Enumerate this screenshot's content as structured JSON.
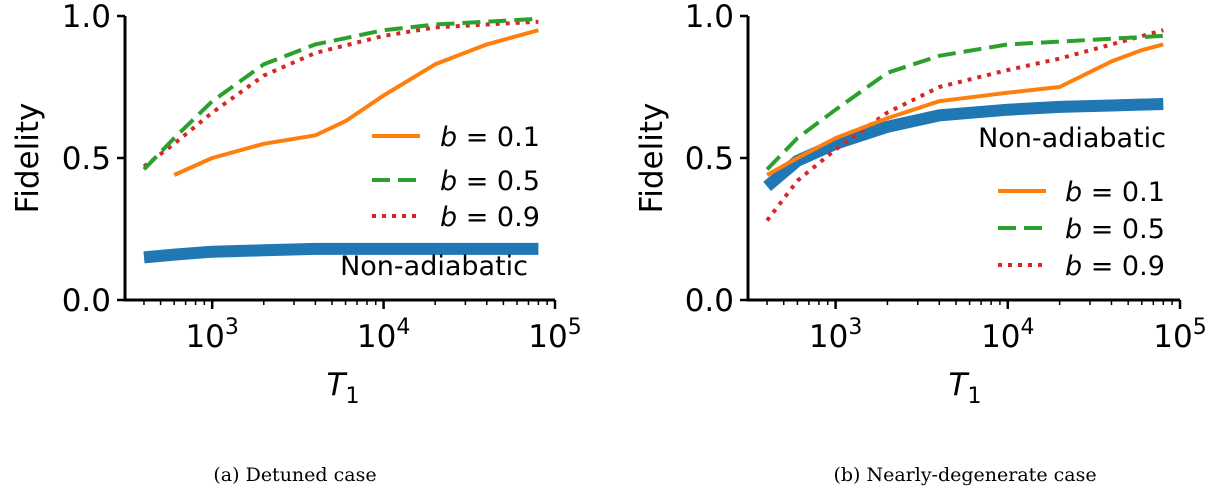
{
  "chart_data": [
    {
      "type": "line",
      "caption": "(a) Detuned case",
      "xlabel": "T",
      "xlabel_sub": "1",
      "ylabel": "Fidelity",
      "xscale": "log",
      "xlim": [
        310,
        100000
      ],
      "ylim": [
        0,
        1
      ],
      "yticks": [
        "0.0",
        "0.5",
        "1.0"
      ],
      "xticks": [
        {
          "value": 1000,
          "base": "10",
          "exp": "3"
        },
        {
          "value": 10000,
          "base": "10",
          "exp": "4"
        },
        {
          "value": 100000,
          "base": "10",
          "exp": "5"
        }
      ],
      "legend_position": "center-right",
      "annotation": "Non-adiabatic",
      "series": [
        {
          "name": "b = 0.1",
          "legend_var": "b",
          "legend_rest": " = 0.1",
          "color": "#ff7f0e",
          "style": "solid",
          "width": 4,
          "x": [
            600,
            1000,
            2000,
            4000,
            6000,
            10000,
            20000,
            40000,
            80000
          ],
          "y": [
            0.44,
            0.5,
            0.55,
            0.58,
            0.63,
            0.72,
            0.83,
            0.9,
            0.95
          ]
        },
        {
          "name": "b = 0.5",
          "legend_var": "b",
          "legend_rest": " = 0.5",
          "color": "#2ca02c",
          "style": "dashed",
          "width": 4,
          "x": [
            400,
            600,
            1000,
            2000,
            4000,
            10000,
            20000,
            40000,
            80000
          ],
          "y": [
            0.46,
            0.57,
            0.7,
            0.83,
            0.9,
            0.95,
            0.97,
            0.98,
            0.99
          ]
        },
        {
          "name": "b = 0.9",
          "legend_var": "b",
          "legend_rest": " = 0.9",
          "color": "#d62728",
          "style": "dotted",
          "width": 4,
          "x": [
            400,
            600,
            1000,
            2000,
            4000,
            10000,
            20000,
            40000,
            80000
          ],
          "y": [
            0.47,
            0.55,
            0.66,
            0.79,
            0.87,
            0.93,
            0.96,
            0.97,
            0.98
          ]
        },
        {
          "name": "Non-adiabatic",
          "legend": false,
          "color": "#1f77b4",
          "style": "solid",
          "width": 12,
          "x": [
            400,
            600,
            1000,
            2000,
            4000,
            10000,
            20000,
            40000,
            80000
          ],
          "y": [
            0.15,
            0.16,
            0.17,
            0.175,
            0.18,
            0.18,
            0.18,
            0.18,
            0.18
          ]
        }
      ]
    },
    {
      "type": "line",
      "caption": "(b) Nearly-degenerate case",
      "xlabel": "T",
      "xlabel_sub": "1",
      "ylabel": "Fidelity",
      "xscale": "log",
      "xlim": [
        310,
        100000
      ],
      "ylim": [
        0,
        1
      ],
      "yticks": [
        "0.0",
        "0.5",
        "1.0"
      ],
      "xticks": [
        {
          "value": 1000,
          "base": "10",
          "exp": "3"
        },
        {
          "value": 10000,
          "base": "10",
          "exp": "4"
        },
        {
          "value": 100000,
          "base": "10",
          "exp": "5"
        }
      ],
      "legend_position": "lower-right",
      "annotation": "Non-adiabatic",
      "series": [
        {
          "name": "b = 0.1",
          "legend_var": "b",
          "legend_rest": " = 0.1",
          "color": "#ff7f0e",
          "style": "solid",
          "width": 4,
          "x": [
            400,
            600,
            1000,
            2000,
            4000,
            10000,
            20000,
            40000,
            60000,
            80000
          ],
          "y": [
            0.44,
            0.5,
            0.57,
            0.64,
            0.7,
            0.73,
            0.75,
            0.84,
            0.88,
            0.9
          ]
        },
        {
          "name": "b = 0.5",
          "legend_var": "b",
          "legend_rest": " = 0.5",
          "color": "#2ca02c",
          "style": "dashed",
          "width": 4,
          "x": [
            400,
            600,
            1000,
            2000,
            4000,
            10000,
            20000,
            40000,
            80000
          ],
          "y": [
            0.46,
            0.57,
            0.67,
            0.8,
            0.86,
            0.9,
            0.91,
            0.92,
            0.93
          ]
        },
        {
          "name": "b = 0.9",
          "legend_var": "b",
          "legend_rest": " = 0.9",
          "color": "#d62728",
          "style": "dotted",
          "width": 4,
          "x": [
            400,
            600,
            1000,
            2000,
            4000,
            10000,
            20000,
            40000,
            80000
          ],
          "y": [
            0.28,
            0.42,
            0.53,
            0.66,
            0.75,
            0.81,
            0.85,
            0.9,
            0.95
          ]
        },
        {
          "name": "Non-adiabatic",
          "legend": false,
          "color": "#1f77b4",
          "style": "solid",
          "width": 12,
          "x": [
            400,
            600,
            1000,
            2000,
            4000,
            10000,
            20000,
            40000,
            80000
          ],
          "y": [
            0.4,
            0.49,
            0.55,
            0.61,
            0.65,
            0.67,
            0.68,
            0.685,
            0.69
          ]
        }
      ]
    }
  ]
}
